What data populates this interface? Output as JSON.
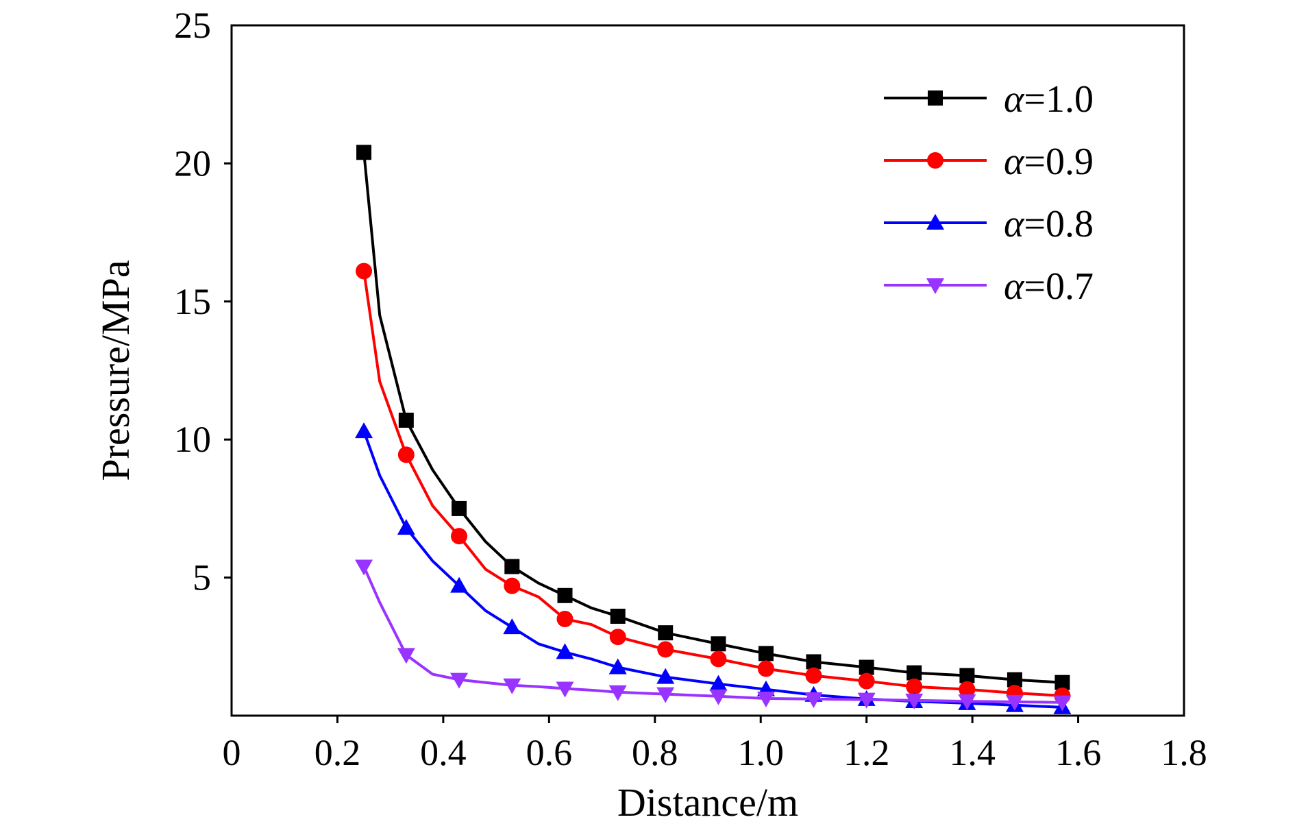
{
  "chart_data": {
    "type": "line",
    "title": "",
    "xlabel": "Distance/m",
    "ylabel": "Pressure/MPa",
    "xlim": [
      0,
      1.8
    ],
    "ylim": [
      0,
      25
    ],
    "x_ticks": [
      0,
      0.2,
      0.4,
      0.6,
      0.8,
      1.0,
      1.2,
      1.4,
      1.6,
      1.8
    ],
    "x_tick_labels": [
      "0",
      "0.2",
      "0.4",
      "0.6",
      "0.8",
      "1.0",
      "1.2",
      "1.4",
      "1.6",
      "1.8"
    ],
    "y_ticks": [
      5,
      10,
      15,
      20,
      25
    ],
    "y_tick_labels": [
      "5",
      "10",
      "15",
      "20",
      "25"
    ],
    "grid": false,
    "legend_position": "top-right",
    "series": [
      {
        "name": "α=1.0",
        "name_symbol": "α",
        "name_value": "=1.0",
        "color": "#000000",
        "marker": "square",
        "x": [
          0.25,
          0.28,
          0.33,
          0.38,
          0.43,
          0.48,
          0.53,
          0.58,
          0.63,
          0.68,
          0.73,
          0.82,
          0.92,
          1.01,
          1.1,
          1.2,
          1.29,
          1.39,
          1.48,
          1.57
        ],
        "y": [
          20.4,
          14.5,
          10.7,
          8.9,
          7.5,
          6.3,
          5.4,
          4.8,
          4.35,
          3.9,
          3.6,
          3.0,
          2.6,
          2.25,
          1.95,
          1.75,
          1.55,
          1.45,
          1.3,
          1.2
        ],
        "marker_x": [
          0.25,
          0.33,
          0.43,
          0.53,
          0.63,
          0.73,
          0.82,
          0.92,
          1.01,
          1.1,
          1.2,
          1.29,
          1.39,
          1.48,
          1.57
        ],
        "marker_y": [
          20.4,
          10.7,
          7.5,
          5.4,
          4.35,
          3.6,
          3.0,
          2.6,
          2.25,
          1.95,
          1.75,
          1.55,
          1.45,
          1.3,
          1.2
        ]
      },
      {
        "name": "α=0.9",
        "name_symbol": "α",
        "name_value": "=0.9",
        "color": "#ff0000",
        "marker": "circle",
        "x": [
          0.25,
          0.28,
          0.33,
          0.38,
          0.43,
          0.48,
          0.53,
          0.58,
          0.63,
          0.68,
          0.73,
          0.82,
          0.92,
          1.01,
          1.1,
          1.2,
          1.29,
          1.39,
          1.48,
          1.57
        ],
        "y": [
          16.1,
          12.1,
          9.45,
          7.6,
          6.5,
          5.3,
          4.7,
          4.3,
          3.5,
          3.3,
          2.85,
          2.4,
          2.05,
          1.7,
          1.45,
          1.25,
          1.05,
          0.95,
          0.82,
          0.72
        ],
        "marker_x": [
          0.25,
          0.33,
          0.43,
          0.53,
          0.63,
          0.73,
          0.82,
          0.92,
          1.01,
          1.1,
          1.2,
          1.29,
          1.39,
          1.48,
          1.57
        ],
        "marker_y": [
          16.1,
          9.45,
          6.5,
          4.7,
          3.5,
          2.85,
          2.4,
          2.05,
          1.7,
          1.45,
          1.25,
          1.05,
          0.95,
          0.82,
          0.72
        ]
      },
      {
        "name": "α=0.8",
        "name_symbol": "α",
        "name_value": "=0.8",
        "color": "#0000ff",
        "marker": "triangle-up",
        "x": [
          0.25,
          0.28,
          0.33,
          0.38,
          0.43,
          0.48,
          0.53,
          0.58,
          0.63,
          0.68,
          0.73,
          0.82,
          0.92,
          1.01,
          1.1,
          1.2,
          1.29,
          1.39,
          1.48,
          1.57
        ],
        "y": [
          10.3,
          8.7,
          6.8,
          5.6,
          4.7,
          3.8,
          3.2,
          2.6,
          2.3,
          2.05,
          1.75,
          1.4,
          1.15,
          0.95,
          0.75,
          0.6,
          0.52,
          0.45,
          0.38,
          0.3
        ],
        "marker_x": [
          0.25,
          0.33,
          0.43,
          0.53,
          0.63,
          0.73,
          0.82,
          0.92,
          1.01,
          1.1,
          1.2,
          1.29,
          1.39,
          1.48,
          1.57
        ],
        "marker_y": [
          10.3,
          6.8,
          4.7,
          3.2,
          2.3,
          1.75,
          1.4,
          1.15,
          0.95,
          0.75,
          0.6,
          0.52,
          0.45,
          0.38,
          0.3
        ]
      },
      {
        "name": "α=0.7",
        "name_symbol": "α",
        "name_value": "=0.7",
        "color": "#9933ff",
        "marker": "triangle-down",
        "x": [
          0.25,
          0.28,
          0.33,
          0.38,
          0.43,
          0.48,
          0.53,
          0.58,
          0.63,
          0.68,
          0.73,
          0.82,
          0.92,
          1.01,
          1.1,
          1.2,
          1.29,
          1.39,
          1.48,
          1.57
        ],
        "y": [
          5.4,
          4.1,
          2.2,
          1.5,
          1.3,
          1.2,
          1.1,
          1.05,
          0.98,
          0.92,
          0.85,
          0.78,
          0.7,
          0.62,
          0.6,
          0.58,
          0.55,
          0.52,
          0.5,
          0.48
        ],
        "marker_x": [
          0.25,
          0.33,
          0.43,
          0.53,
          0.63,
          0.73,
          0.82,
          0.92,
          1.01,
          1.1,
          1.2,
          1.29,
          1.39,
          1.48,
          1.57
        ],
        "marker_y": [
          5.4,
          2.2,
          1.3,
          1.1,
          0.98,
          0.85,
          0.78,
          0.7,
          0.62,
          0.6,
          0.58,
          0.55,
          0.52,
          0.5,
          0.48
        ]
      }
    ]
  }
}
